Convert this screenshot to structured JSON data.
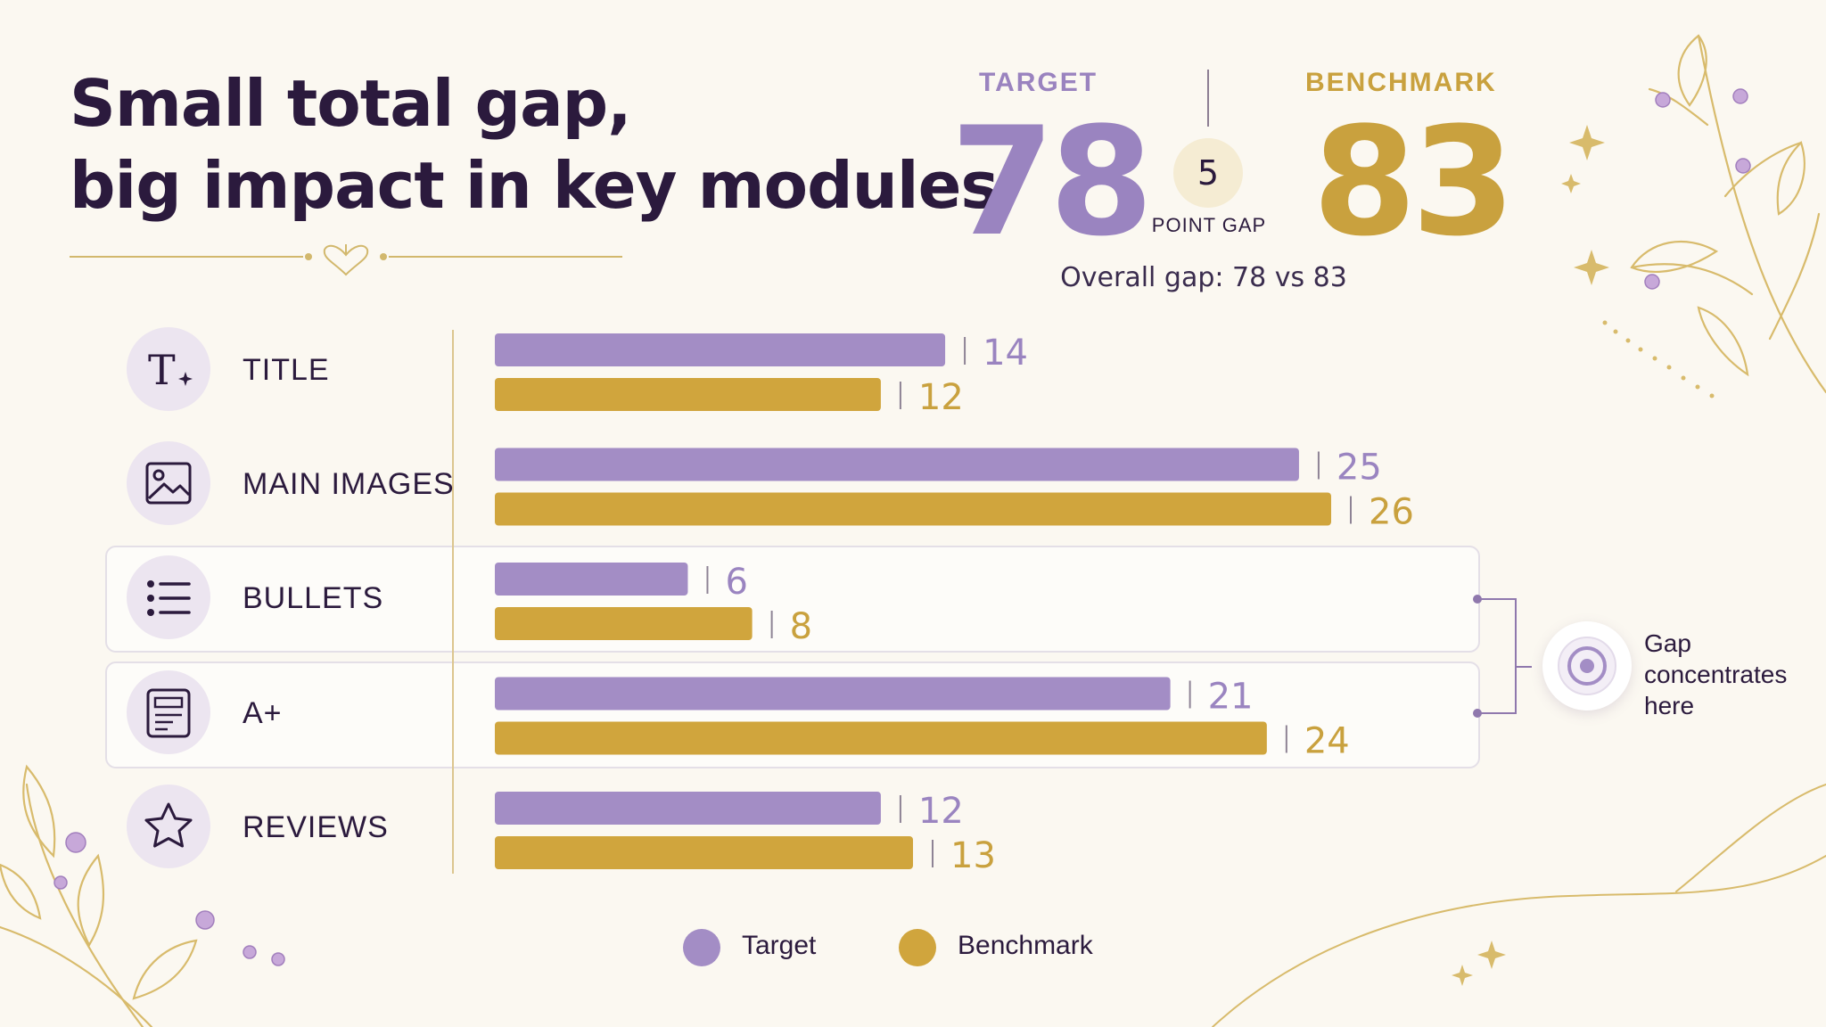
{
  "headline": {
    "line1": "Small total gap,",
    "line2": "big impact in key modules"
  },
  "scores": {
    "target_label": "TARGET",
    "target_value": "78",
    "benchmark_label": "BENCHMARK",
    "benchmark_value": "83",
    "gap_value": "5",
    "gap_caption": "POINT GAP",
    "overall_caption": "Overall gap: 78 vs 83"
  },
  "modules": [
    {
      "label": "TITLE",
      "icon": "title-text-icon"
    },
    {
      "label": "MAIN IMAGES",
      "icon": "image-icon"
    },
    {
      "label": "BULLETS",
      "icon": "bullet-list-icon"
    },
    {
      "label": "A+",
      "icon": "content-page-icon"
    },
    {
      "label": "REVIEWS",
      "icon": "star-icon"
    }
  ],
  "callout": {
    "line1": "Gap",
    "line2": "concentrates",
    "line3": "here",
    "icon": "target-icon",
    "highlighted_categories": [
      "BULLETS",
      "A+"
    ]
  },
  "legend": {
    "target": "Target",
    "benchmark": "Benchmark"
  },
  "colors": {
    "target": "#a38dc5",
    "benchmark": "#d0a53d",
    "target_text": "#9a84c0",
    "benchmark_text": "#c9a13e"
  },
  "chart_data": {
    "type": "bar",
    "orientation": "horizontal",
    "categories": [
      "TITLE",
      "MAIN IMAGES",
      "BULLETS",
      "A+",
      "REVIEWS"
    ],
    "series": [
      {
        "name": "Target",
        "values": [
          14,
          25,
          6,
          21,
          12
        ]
      },
      {
        "name": "Benchmark",
        "values": [
          12,
          26,
          8,
          24,
          13
        ]
      }
    ],
    "xlim": [
      0,
      26
    ],
    "grid": false,
    "legend_position": "bottom",
    "data_labels": true
  }
}
